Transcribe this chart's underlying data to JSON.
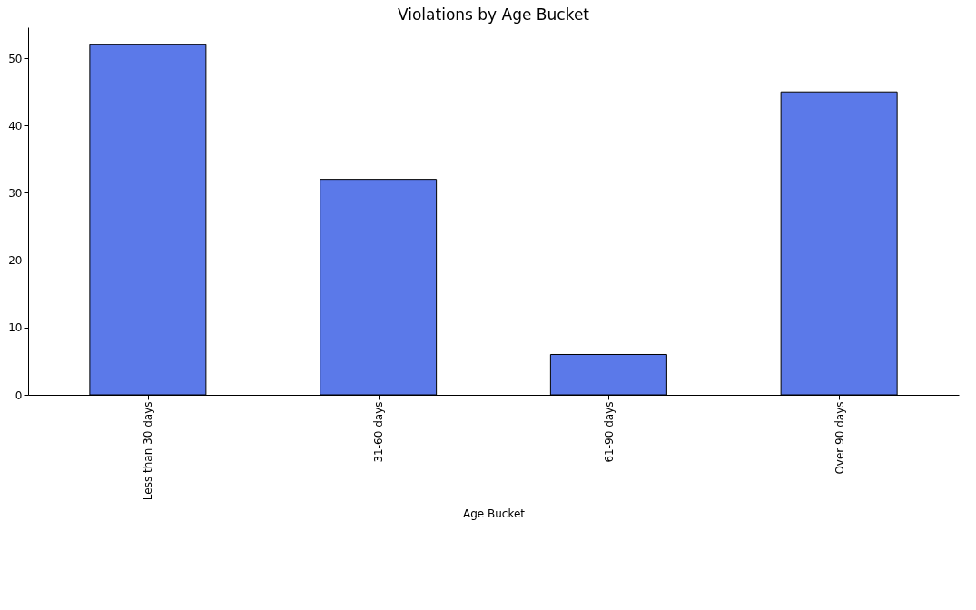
{
  "chart_data": {
    "type": "bar",
    "title": "Violations by Age Bucket",
    "xlabel": "Age Bucket",
    "categories": [
      "Less than 30 days",
      "31-60 days",
      "61-90 days",
      "Over 90 days"
    ],
    "values": [
      52,
      32,
      6,
      45
    ],
    "color": "#5b79e9",
    "ylim": [
      0,
      54.6
    ],
    "yticks": [
      0,
      10,
      20,
      30,
      40,
      50
    ],
    "grid": false
  }
}
